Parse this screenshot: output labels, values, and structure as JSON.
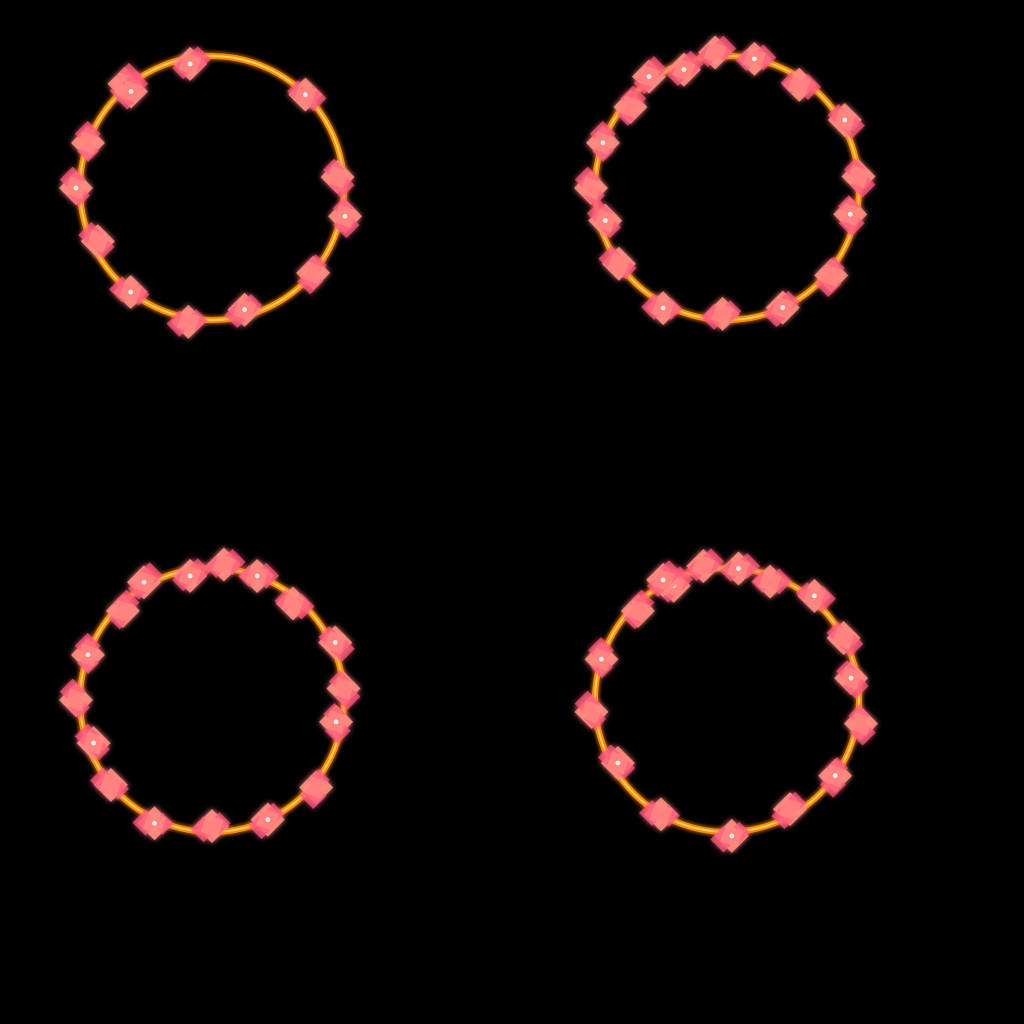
{
  "colors": {
    "background": "#000000",
    "ring_outer": "#ff8c00",
    "ring_inner": "#ffd060",
    "blossom_core": "#ff8a80",
    "blossom_edge": "#ff5a7a",
    "sparkle": "#ffffff"
  },
  "frames": [
    {
      "name": "frame-top-left"
    },
    {
      "name": "frame-top-right"
    },
    {
      "name": "frame-bottom-left"
    },
    {
      "name": "frame-bottom-right"
    }
  ]
}
